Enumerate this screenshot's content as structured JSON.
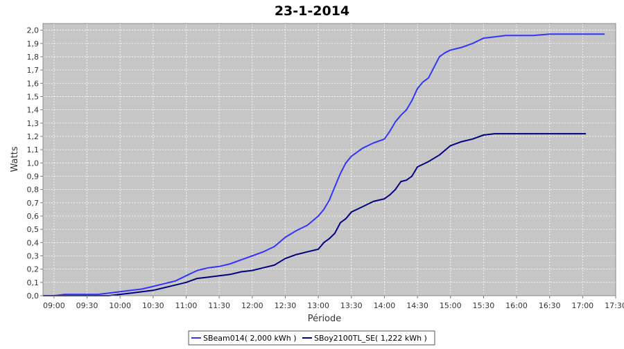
{
  "chart_data": {
    "type": "line",
    "title": "23-1-2014",
    "xlabel": "Période",
    "ylabel": "Watts",
    "xlim": [
      "08:50",
      "17:30"
    ],
    "ylim": [
      0,
      2.05
    ],
    "x_ticks": [
      "09:00",
      "09:30",
      "10:00",
      "10:30",
      "11:00",
      "11:30",
      "12:00",
      "12:30",
      "13:00",
      "13:30",
      "14:00",
      "14:30",
      "15:00",
      "15:30",
      "16:00",
      "16:30",
      "17:00",
      "17:30"
    ],
    "y_ticks": [
      "0,0",
      "0,1",
      "0,2",
      "0,3",
      "0,4",
      "0,5",
      "0,6",
      "0,7",
      "0,8",
      "0,9",
      "1,0",
      "1,1",
      "1,2",
      "1,3",
      "1,4",
      "1,5",
      "1,6",
      "1,7",
      "1,8",
      "1,9",
      "2,0"
    ],
    "grid": true,
    "legend_position": "bottom",
    "series": [
      {
        "name": "SBeam014( 2,000 kWh )",
        "color": "#3333ff",
        "x": [
          "08:50",
          "09:00",
          "09:10",
          "09:20",
          "09:30",
          "09:40",
          "09:50",
          "10:00",
          "10:10",
          "10:20",
          "10:30",
          "10:40",
          "10:50",
          "11:00",
          "11:10",
          "11:20",
          "11:30",
          "11:40",
          "11:50",
          "12:00",
          "12:10",
          "12:20",
          "12:30",
          "12:40",
          "12:50",
          "13:00",
          "13:05",
          "13:10",
          "13:15",
          "13:20",
          "13:25",
          "13:30",
          "13:40",
          "13:50",
          "14:00",
          "14:05",
          "14:10",
          "14:15",
          "14:20",
          "14:25",
          "14:30",
          "14:35",
          "14:40",
          "14:45",
          "14:50",
          "14:55",
          "15:00",
          "15:10",
          "15:20",
          "15:30",
          "15:40",
          "15:50",
          "16:00",
          "16:15",
          "16:30",
          "16:45",
          "17:00",
          "17:15",
          "17:20"
        ],
        "y": [
          0.0,
          0.0,
          0.01,
          0.01,
          0.01,
          0.01,
          0.02,
          0.03,
          0.04,
          0.05,
          0.07,
          0.09,
          0.11,
          0.15,
          0.19,
          0.21,
          0.22,
          0.24,
          0.27,
          0.3,
          0.33,
          0.37,
          0.44,
          0.49,
          0.53,
          0.6,
          0.65,
          0.72,
          0.82,
          0.92,
          1.0,
          1.05,
          1.11,
          1.15,
          1.18,
          1.24,
          1.31,
          1.36,
          1.4,
          1.47,
          1.56,
          1.61,
          1.64,
          1.72,
          1.8,
          1.83,
          1.85,
          1.87,
          1.9,
          1.94,
          1.95,
          1.96,
          1.96,
          1.96,
          1.97,
          1.97,
          1.97,
          1.97,
          1.97
        ]
      },
      {
        "name": "SBoy2100TL_SE( 1,222 kWh )",
        "color": "#000080",
        "x": [
          "08:50",
          "09:00",
          "09:10",
          "09:20",
          "09:30",
          "09:40",
          "09:50",
          "10:00",
          "10:10",
          "10:20",
          "10:30",
          "10:40",
          "10:50",
          "11:00",
          "11:10",
          "11:20",
          "11:30",
          "11:40",
          "11:50",
          "12:00",
          "12:10",
          "12:20",
          "12:30",
          "12:40",
          "12:50",
          "13:00",
          "13:05",
          "13:10",
          "13:15",
          "13:20",
          "13:25",
          "13:30",
          "13:40",
          "13:50",
          "14:00",
          "14:05",
          "14:10",
          "14:15",
          "14:20",
          "14:25",
          "14:30",
          "14:40",
          "14:50",
          "15:00",
          "15:10",
          "15:20",
          "15:30",
          "15:40",
          "16:00",
          "16:30",
          "17:00",
          "17:03"
        ],
        "y": [
          0.0,
          0.0,
          0.0,
          0.0,
          0.0,
          0.0,
          0.0,
          0.01,
          0.02,
          0.03,
          0.04,
          0.06,
          0.08,
          0.1,
          0.13,
          0.14,
          0.15,
          0.16,
          0.18,
          0.19,
          0.21,
          0.23,
          0.28,
          0.31,
          0.33,
          0.35,
          0.4,
          0.43,
          0.47,
          0.55,
          0.58,
          0.63,
          0.67,
          0.71,
          0.73,
          0.76,
          0.8,
          0.86,
          0.87,
          0.9,
          0.97,
          1.01,
          1.06,
          1.13,
          1.16,
          1.18,
          1.21,
          1.22,
          1.22,
          1.22,
          1.22,
          1.22
        ]
      }
    ]
  }
}
